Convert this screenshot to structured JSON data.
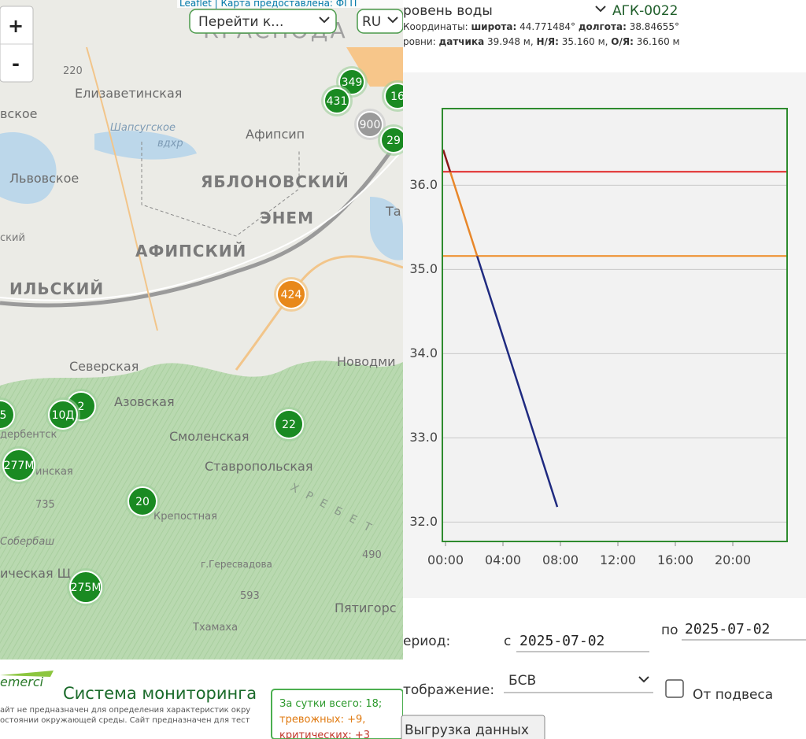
{
  "map": {
    "attribution": "Leaflet | Карта предоставлена: ФГП",
    "goto": "Перейти к...",
    "lang": "RU",
    "zoom_in": "+",
    "zoom_out": "-",
    "labels": [
      "КРАСНОДА",
      "Елизаветинская",
      "220",
      "вское",
      "Шапсугское",
      "вдхр",
      "Афипсип",
      "Львовское",
      "ЯБЛОНОВСКИЙ",
      "ЭНЕМ",
      "АФИПСКИЙ",
      "ИЛЬСКИЙ",
      "ский",
      "Северская",
      "Новодми",
      "Азовская",
      "Смоленская",
      "Ставропольская",
      "дербентск",
      "инская",
      "735",
      "Крепостная",
      "Собербаш",
      "ическая Щ",
      "г.Гересвадова",
      "593",
      "490",
      "Пятигорс",
      "Тхамаха",
      "ХРЕБЕТ",
      "Та"
    ],
    "markers": [
      "349",
      "431",
      "16",
      "900",
      "29",
      "424",
      "22",
      "20",
      "2",
      "10Д",
      "5",
      "277М",
      "275М"
    ]
  },
  "footer": {
    "logo": "emerci",
    "title": "Система мониторинга",
    "note": [
      "айт не предназначен для определения характеристик окру",
      "остоянии окружающей среды. Сайт предназначен для тест"
    ],
    "stats": [
      "За сутки всего: 18;",
      "тревожных: +9,",
      "критических: +3"
    ]
  },
  "panel": {
    "parameter": "ровень воды",
    "station": "АГК-0022",
    "coords": [
      "Координаты: ",
      "широта:",
      " 44.771484° ",
      "долгота:",
      " 38.84655°"
    ],
    "levels": [
      "ровни: ",
      "датчика",
      " 39.948 м, ",
      "Н/Я:",
      " 35.160 м, ",
      "О/Я:",
      " 36.160 м"
    ]
  },
  "chart_data": {
    "type": "line",
    "series": [
      {
        "x": [
          -0.16,
          7.78
        ],
        "values": [
          36.42,
          32.18
        ],
        "zone_colors": [
          "#8b1a1a",
          "#e8872a",
          "#1f2a80"
        ]
      }
    ],
    "thresholds": [
      {
        "value": 36.16,
        "color": "#e02525"
      },
      {
        "value": 35.16,
        "color": "#ee8a22"
      }
    ],
    "xlim": [
      -0.22,
      23.78
    ],
    "ylim": [
      31.77,
      36.91
    ],
    "xticks": [
      {
        "value": 0,
        "label": "00:00"
      },
      {
        "value": 4,
        "label": "04:00"
      },
      {
        "value": 8,
        "label": "08:00"
      },
      {
        "value": 12,
        "label": "12:00"
      },
      {
        "value": 16,
        "label": "16:00"
      },
      {
        "value": 20,
        "label": "20:00"
      }
    ],
    "yticks": [
      {
        "value": 32,
        "label": "32.0"
      },
      {
        "value": 33,
        "label": "33.0"
      },
      {
        "value": 34,
        "label": "34.0"
      },
      {
        "value": 35,
        "label": "35.0"
      },
      {
        "value": 36,
        "label": "36.0"
      }
    ],
    "grid": true
  },
  "controls": {
    "period": "ериод:",
    "from": "с",
    "date_from": "2025-07-02",
    "to": "по",
    "date_to": "2025-07-02",
    "display": "тображение:",
    "display_value": "БСВ",
    "suspension": "От подвеса",
    "export": "Выгрузка данных"
  }
}
